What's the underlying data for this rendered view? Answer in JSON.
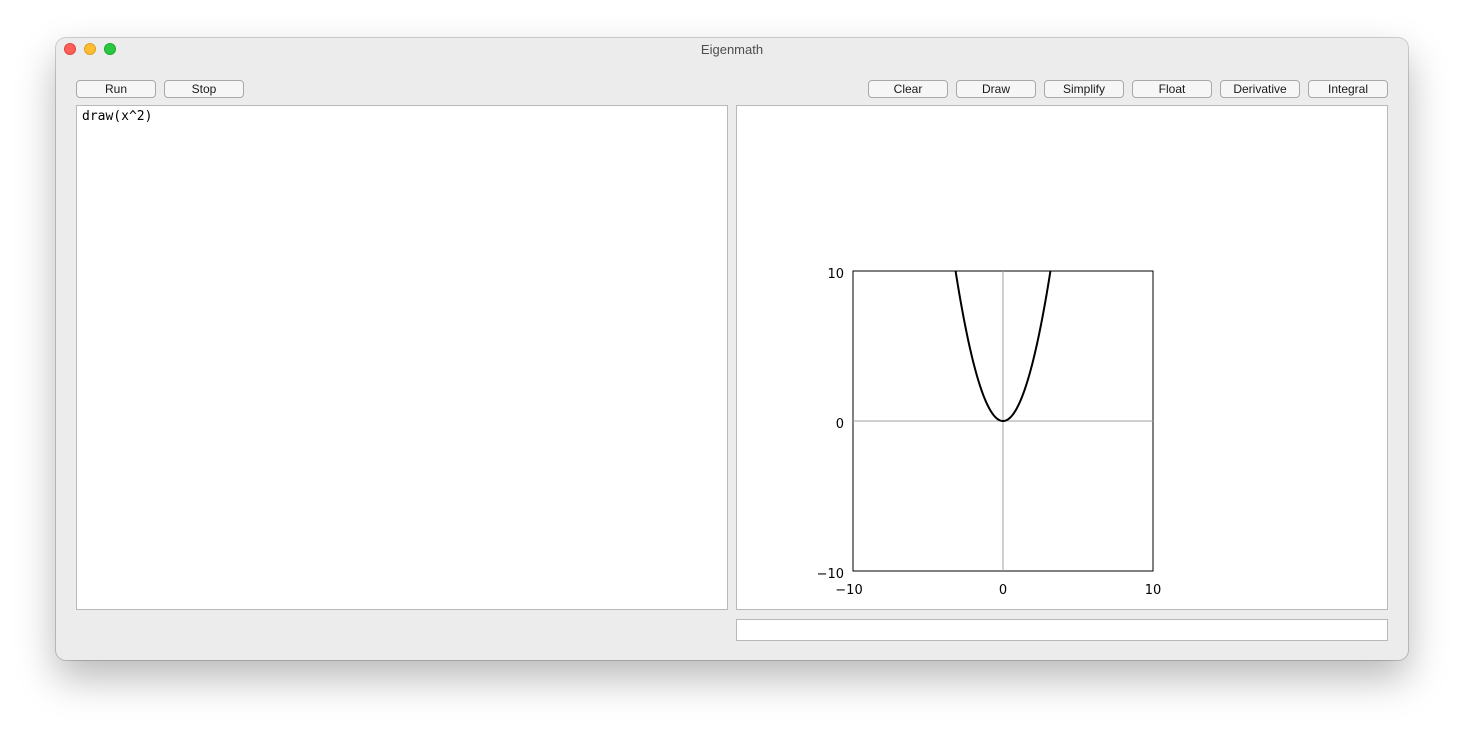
{
  "window": {
    "title": "Eigenmath"
  },
  "toolbar": {
    "run_label": "Run",
    "stop_label": "Stop",
    "clear_label": "Clear",
    "draw_label": "Draw",
    "simplify_label": "Simplify",
    "float_label": "Float",
    "derivative_label": "Derivative",
    "integral_label": "Integral"
  },
  "editor": {
    "text": "draw(x^2)"
  },
  "status": {
    "text": ""
  },
  "chart_data": {
    "type": "line",
    "function": "x^2",
    "xlim": [
      -10,
      10
    ],
    "ylim": [
      -10,
      10
    ],
    "x_ticks": [
      "−10",
      "0",
      "10"
    ],
    "y_ticks": [
      "10",
      "0",
      "−10"
    ],
    "axes_at_origin": true,
    "series": [
      {
        "x": [
          -3.2,
          -3.0,
          -2.5,
          -2.0,
          -1.5,
          -1.0,
          -0.5,
          0,
          0.5,
          1.0,
          1.5,
          2.0,
          2.5,
          3.0,
          3.2
        ],
        "y": [
          10.24,
          9.0,
          6.25,
          4.0,
          2.25,
          1.0,
          0.25,
          0,
          0.25,
          1.0,
          2.25,
          4.0,
          6.25,
          9.0,
          10.24
        ]
      }
    ],
    "colors": {
      "curve": "#000000",
      "axis": "#a0a0a0",
      "frame": "#000000"
    }
  }
}
